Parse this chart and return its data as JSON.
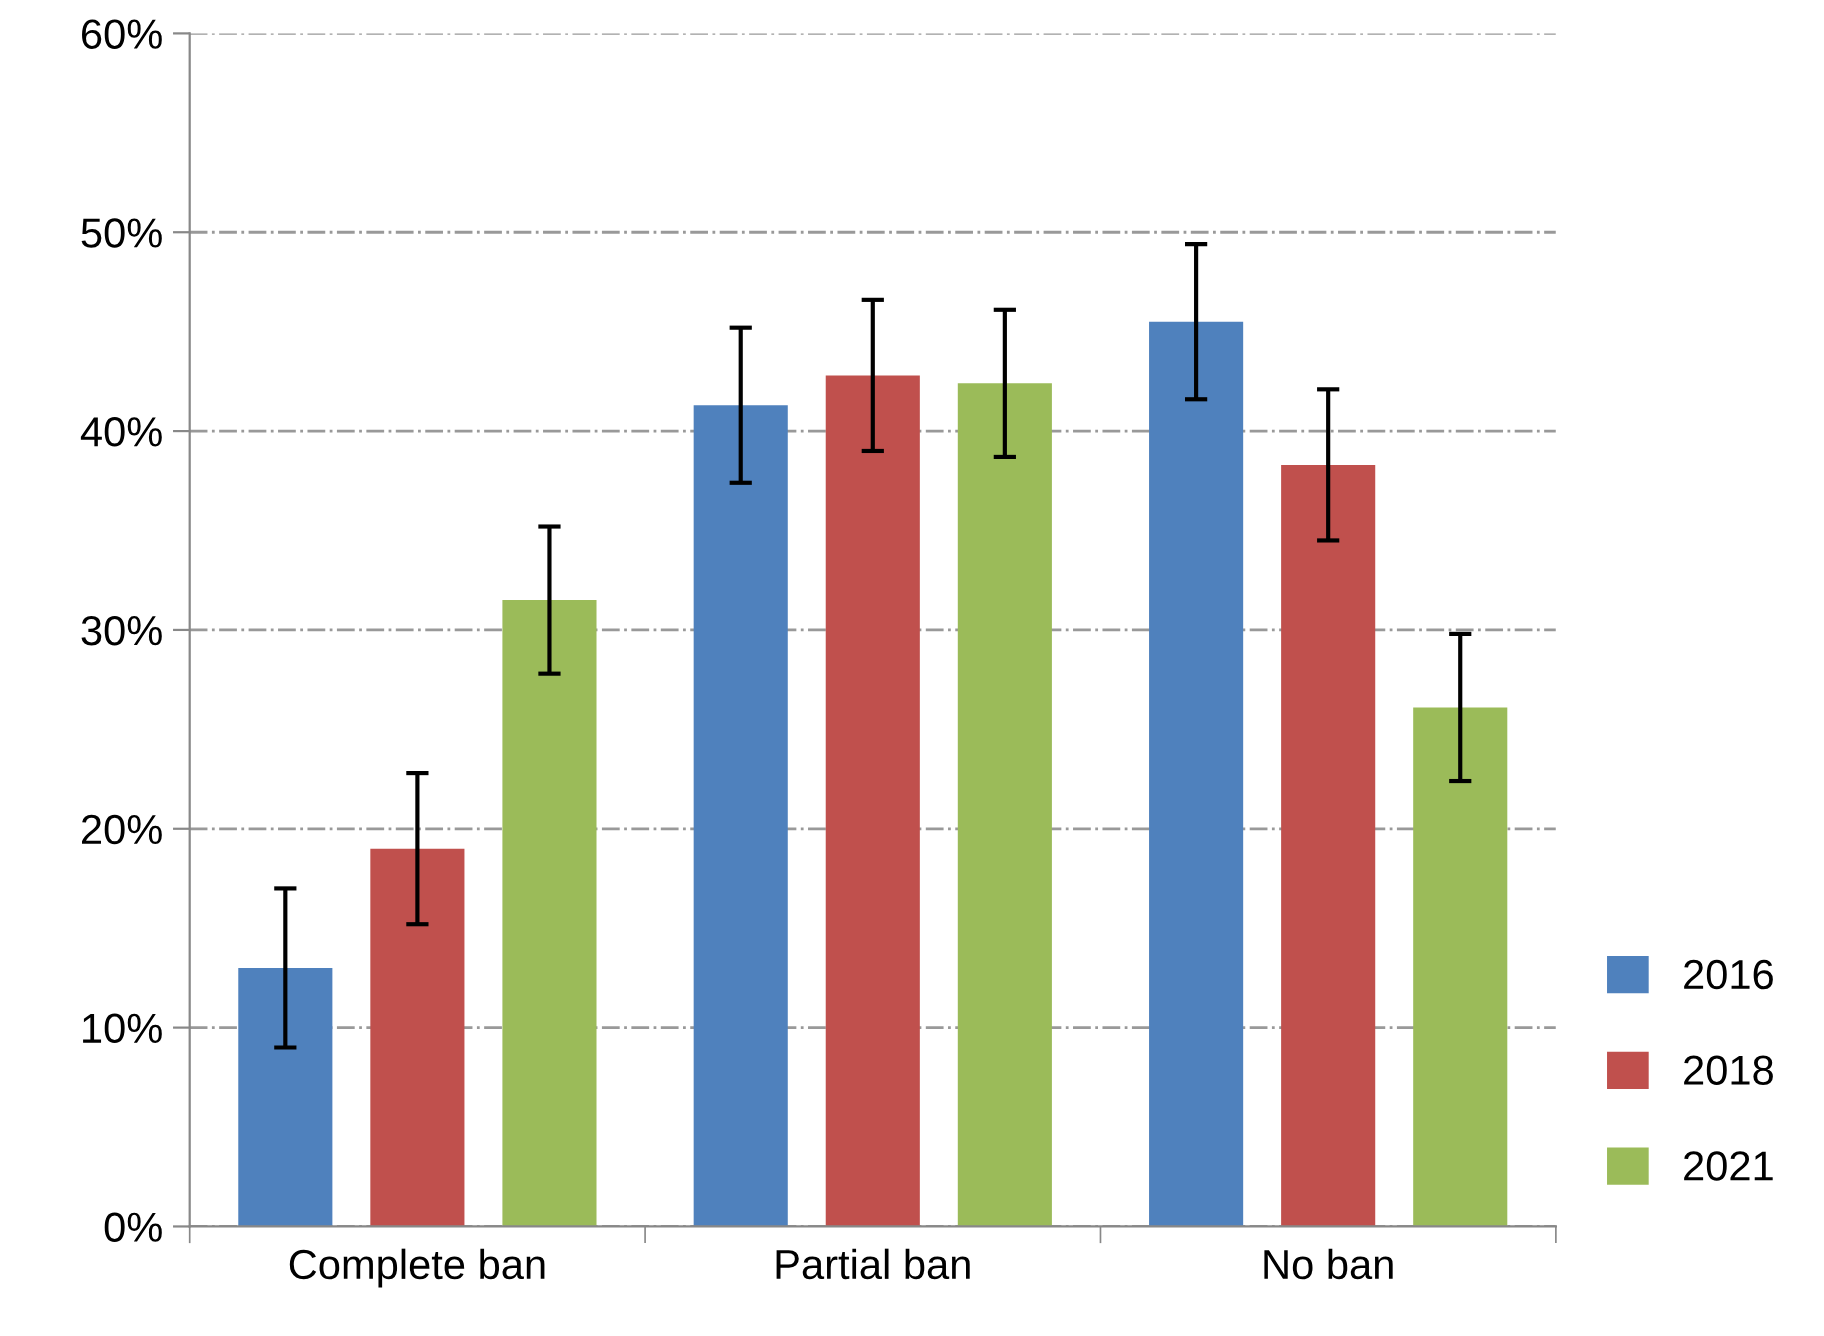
{
  "chart_data": {
    "type": "bar",
    "categories": [
      "Complete ban",
      "Partial ban",
      "No ban"
    ],
    "series": [
      {
        "name": "2016",
        "color": "#4f81bd",
        "values": [
          13.0,
          41.3,
          45.5
        ],
        "errors": [
          4.0,
          3.9,
          3.9
        ]
      },
      {
        "name": "2018",
        "color": "#c0504d",
        "values": [
          19.0,
          42.8,
          38.3
        ],
        "errors": [
          3.8,
          3.8,
          3.8
        ]
      },
      {
        "name": "2021",
        "color": "#9bbb59",
        "values": [
          31.5,
          42.4,
          26.1
        ],
        "errors": [
          3.7,
          3.7,
          3.7
        ]
      }
    ],
    "ylim": [
      0,
      60
    ],
    "yticks": [
      {
        "value": 0,
        "label": "0%"
      },
      {
        "value": 10,
        "label": "10%"
      },
      {
        "value": 20,
        "label": "20%"
      },
      {
        "value": 30,
        "label": "30%"
      },
      {
        "value": 40,
        "label": "40%"
      },
      {
        "value": 50,
        "label": "50%"
      },
      {
        "value": 60,
        "label": "60%"
      }
    ],
    "grid": "y",
    "legend": "right"
  }
}
